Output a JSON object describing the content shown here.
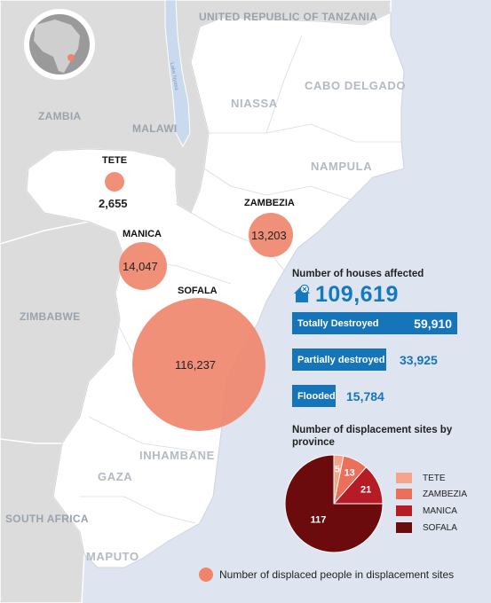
{
  "countries": {
    "tanzania": "UNITED REPUBLIC OF TANZANIA",
    "zambia": "ZAMBIA",
    "malawi": "MALAWI",
    "zimbabwe": "ZIMBABWE",
    "south_africa": "SOUTH AFRICA"
  },
  "provinces": {
    "cabo_delgado": "CABO DELGADO",
    "niassa": "NIASSA",
    "nampula": "NAMPULA",
    "inhambane": "INHAMBANE",
    "gaza": "GAZA",
    "maputo": "MAPUTO"
  },
  "lake_label": "Lake Nyasa",
  "bubbles": [
    {
      "name": "TETE",
      "value": "2,655"
    },
    {
      "name": "ZAMBEZIA",
      "value": "13,203"
    },
    {
      "name": "MANICA",
      "value": "14,047"
    },
    {
      "name": "SOFALA",
      "value": "116,237"
    }
  ],
  "houses": {
    "title": "Number of houses affected",
    "total": "109,619",
    "icon": "house-icon",
    "rows": [
      {
        "label": "Totally Destroyed",
        "value": "59,910"
      },
      {
        "label": "Partially destroyed",
        "value": "33,925"
      },
      {
        "label": "Flooded",
        "value": "15,784"
      }
    ]
  },
  "sites": {
    "title": "Number of displacement sites by province",
    "slices": [
      {
        "name": "TETE",
        "value": 5,
        "color": "#f4a58a"
      },
      {
        "name": "ZAMBEZIA",
        "value": 13,
        "color": "#ec6f5a"
      },
      {
        "name": "MANICA",
        "value": 21,
        "color": "#b51c25"
      },
      {
        "name": "SOFALA",
        "value": 117,
        "color": "#6b0b0d"
      }
    ]
  },
  "legend": {
    "label": "Number of displaced people in displacement sites",
    "color": "#f0846a"
  },
  "colors": {
    "land_mozambique": "#ffffff",
    "land_neighbors": "#dcdcdc",
    "ocean": "#dfe5f0",
    "bubble": "#f0846a",
    "accent_blue": "#1674b8"
  }
}
